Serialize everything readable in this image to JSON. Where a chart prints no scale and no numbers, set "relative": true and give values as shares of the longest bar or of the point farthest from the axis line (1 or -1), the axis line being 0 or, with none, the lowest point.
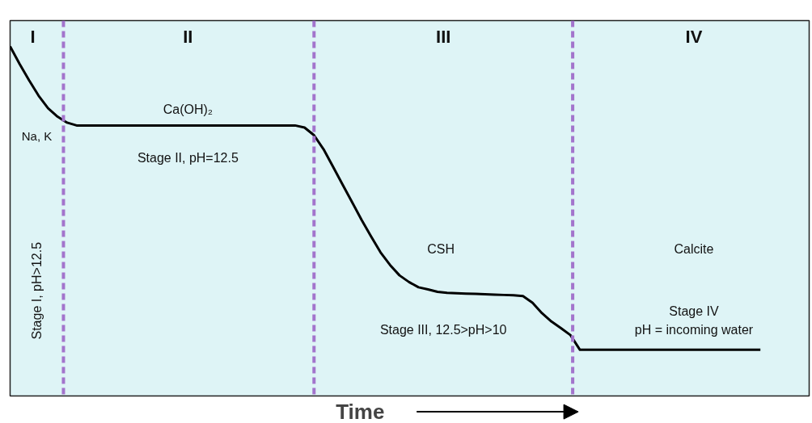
{
  "chart_data": {
    "type": "line",
    "relative": true,
    "xlabel": "Time",
    "ylabel": "Stage I, pH>12.5",
    "categories": [
      null,
      null,
      null,
      null,
      null,
      null,
      null,
      null,
      null,
      null,
      null,
      null,
      null,
      null,
      null,
      null,
      null,
      null,
      null,
      null,
      null,
      null,
      null,
      null,
      null,
      null,
      null,
      null,
      null,
      null,
      null,
      null,
      null,
      null,
      null,
      null,
      null,
      null,
      null,
      null,
      null,
      null,
      null,
      null,
      null,
      null,
      null,
      null,
      null,
      null,
      null,
      null,
      null,
      null,
      null,
      null,
      null,
      null,
      null,
      null,
      null,
      null,
      null,
      null,
      null,
      null,
      null,
      null,
      null,
      null,
      null,
      null,
      null,
      null,
      null,
      null,
      null,
      null,
      null,
      null
    ],
    "series": [
      {
        "color": "#000000",
        "values": [
          1.0,
          0.95,
          0.903,
          0.859,
          0.823,
          0.799,
          0.782,
          0.774,
          0.774,
          0.774,
          0.774,
          0.774,
          0.774,
          0.774,
          0.774,
          0.774,
          0.774,
          0.774,
          0.774,
          0.774,
          0.774,
          0.774,
          0.774,
          0.774,
          0.774,
          0.774,
          0.774,
          0.774,
          0.774,
          0.774,
          0.774,
          0.768,
          0.746,
          0.706,
          0.656,
          0.605,
          0.555,
          0.504,
          0.457,
          0.411,
          0.375,
          0.345,
          0.326,
          0.311,
          0.305,
          0.298,
          0.295,
          0.294,
          0.293,
          0.292,
          0.291,
          0.29,
          0.289,
          0.288,
          0.286,
          0.267,
          0.237,
          0.213,
          0.194,
          0.174,
          0.132,
          0.132,
          0.132,
          0.132,
          0.132,
          0.132,
          0.132,
          0.132,
          0.132,
          0.132,
          0.132,
          0.132,
          0.132,
          0.132,
          0.132,
          0.132,
          0.132,
          0.132,
          0.132,
          0.132
        ]
      }
    ],
    "marker": "none",
    "line_style": "solid",
    "grid": false,
    "tick_labels": false,
    "annotations": [
      "I",
      "II",
      "III",
      "IV",
      "Ca(OH)₂",
      "Na, K",
      "Stage II, pH=12.5",
      "CSH",
      "Calcite",
      "Stage III, 12.5>pH>10",
      "Stage IV",
      "pH = incoming water"
    ]
  }
}
